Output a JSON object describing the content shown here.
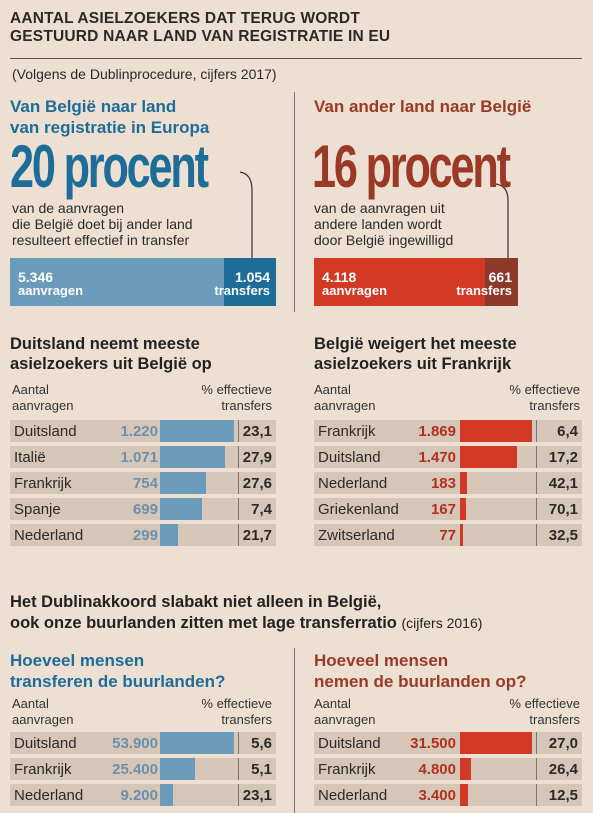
{
  "title": [
    "AANTAL ASIELZOEKERS DAT TERUG WORDT",
    "GESTUURD NAAR LAND VAN REGISTRATIE IN EU"
  ],
  "subtitle": "(Volgens de Dublinprocedure, cijfers 2017)",
  "colors": {
    "blue": "#1e6c98",
    "blue_light": "#6b9bbb",
    "red": "#9a3a26",
    "red_bright": "#d23a26",
    "red_dark": "#8e3a2a",
    "row_bg": "#d6c6b8",
    "bg": "#eddfd2"
  },
  "left_top": {
    "heading": [
      "Van België naar land",
      "van registratie in Europa"
    ],
    "big_number": "20 procent",
    "desc": [
      "van de aanvragen",
      "die België doet bij ander land",
      "resulteert effectief in transfer"
    ],
    "requests_value": "5.346",
    "requests_label": "aanvragen",
    "transfers_value": "1.054",
    "transfers_label": "transfers"
  },
  "right_top": {
    "heading": "Van ander land naar België",
    "big_number": "16 procent",
    "desc": [
      "van de aanvragen uit",
      "andere landen wordt",
      "door België ingewilligd"
    ],
    "requests_value": "4.118",
    "requests_label": "aanvragen",
    "transfers_value": "661",
    "transfers_label": "transfers"
  },
  "left_mid": {
    "heading": [
      "Duitsland neemt meeste",
      "asielzoekers uit België op"
    ],
    "col1": [
      "Aantal",
      "aanvragen"
    ],
    "col2": [
      "% effectieve",
      "transfers"
    ]
  },
  "right_mid": {
    "heading": [
      "België weigert het meeste",
      "asielzoekers uit Frankrijk"
    ],
    "col1": [
      "Aantal",
      "aanvragen"
    ],
    "col2": [
      "% effectieve",
      "transfers"
    ]
  },
  "mid_banner": {
    "line1": "Het Dublinakkoord slabakt niet alleen in België,",
    "line2": "ook onze buurlanden zitten met lage transferratio",
    "line2_small": "(cijfers 2016)"
  },
  "left_bottom": {
    "heading": [
      "Hoeveel mensen",
      "transferen de buurlanden?"
    ],
    "col1": [
      "Aantal",
      "aanvragen"
    ],
    "col2": [
      "% effectieve",
      "transfers"
    ]
  },
  "right_bottom": {
    "heading": [
      "Hoeveel mensen",
      "nemen de buurlanden op?"
    ],
    "col1": [
      "Aantal",
      "aanvragen"
    ],
    "col2": [
      "% effectieve",
      "transfers"
    ]
  },
  "chart_data": [
    {
      "type": "bar",
      "title": "Van België naar land van registratie in Europa",
      "categories": [
        "aanvragen",
        "transfers"
      ],
      "values": [
        5346,
        1054
      ]
    },
    {
      "type": "bar",
      "title": "Van ander land naar België",
      "categories": [
        "aanvragen",
        "transfers"
      ],
      "values": [
        4118,
        661
      ]
    },
    {
      "type": "bar",
      "title": "Duitsland neemt meeste asielzoekers uit België op",
      "categories": [
        "Duitsland",
        "Italië",
        "Frankrijk",
        "Spanje",
        "Nederland"
      ],
      "values": [
        1220,
        1071,
        754,
        699,
        299
      ],
      "labels": [
        "1.220",
        "1.071",
        "754",
        "699",
        "299"
      ],
      "pct": [
        "23,1",
        "27,9",
        "27,6",
        "7,4",
        "21,7"
      ],
      "max": 1220
    },
    {
      "type": "bar",
      "title": "België weigert het meeste asielzoekers uit Frankrijk",
      "categories": [
        "Frankrijk",
        "Duitsland",
        "Nederland",
        "Griekenland",
        "Zwitserland"
      ],
      "values": [
        1869,
        1470,
        183,
        167,
        77
      ],
      "labels": [
        "1.869",
        "1.470",
        "183",
        "167",
        "77"
      ],
      "pct": [
        "6,4",
        "17,2",
        "42,1",
        "70,1",
        "32,5"
      ],
      "max": 1869
    },
    {
      "type": "bar",
      "title": "Hoeveel mensen transferen de buurlanden?",
      "categories": [
        "Duitsland",
        "Frankrijk",
        "Nederland"
      ],
      "values": [
        53900,
        25400,
        9200
      ],
      "labels": [
        "53.900",
        "25.400",
        "9.200"
      ],
      "pct": [
        "5,6",
        "5,1",
        "23,1"
      ],
      "max": 53900
    },
    {
      "type": "bar",
      "title": "Hoeveel mensen nemen de buurlanden op?",
      "categories": [
        "Duitsland",
        "Frankrijk",
        "Nederland"
      ],
      "values": [
        31500,
        4800,
        3400
      ],
      "labels": [
        "31.500",
        "4.800",
        "3.400"
      ],
      "pct": [
        "27,0",
        "26,4",
        "12,5"
      ],
      "max": 31500
    }
  ]
}
